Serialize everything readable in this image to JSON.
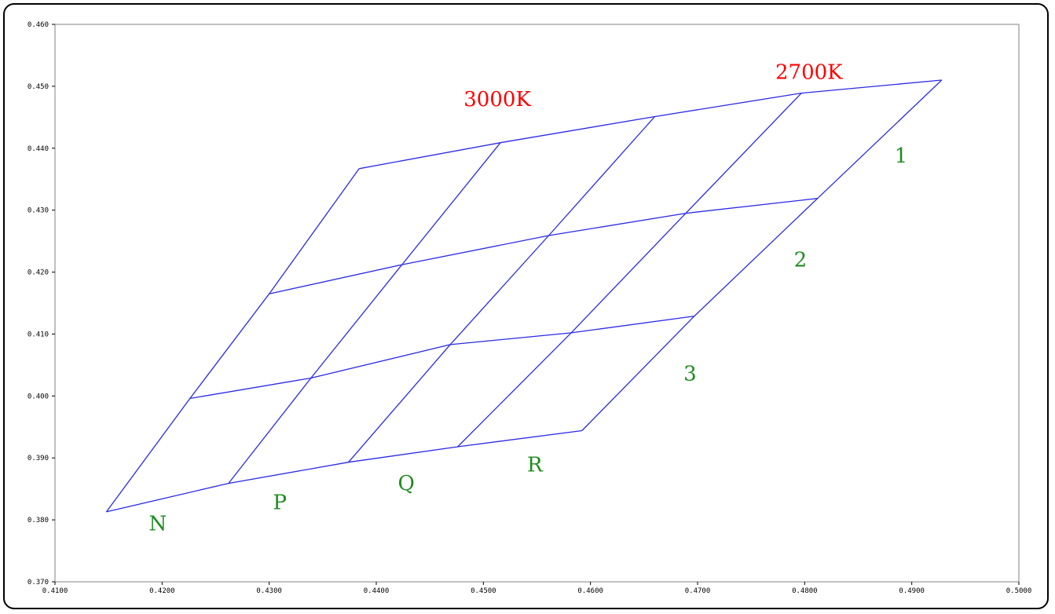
{
  "colors": {
    "grid_line": "#2a2ae6",
    "temp_label": "#ff0000",
    "bin_label": "#1e8c1e",
    "axis": "#808080"
  },
  "chart_data": {
    "type": "line",
    "title": "",
    "xlabel": "",
    "ylabel": "",
    "xlim": [
      0.41,
      0.5
    ],
    "ylim": [
      0.37,
      0.46
    ],
    "x_ticks": [
      "0.4100",
      "0.4200",
      "0.4300",
      "0.4400",
      "0.4500",
      "0.4600",
      "0.4700",
      "0.4800",
      "0.4900",
      "0.5000"
    ],
    "y_ticks": [
      "0.370",
      "0.380",
      "0.390",
      "0.400",
      "0.410",
      "0.420",
      "0.430",
      "0.440",
      "0.450",
      "0.460"
    ],
    "grid": false,
    "legend": "none",
    "series": [
      {
        "points": [
          [
            0.4148,
            0.3813
          ],
          [
            0.4262,
            0.3859
          ],
          [
            0.4374,
            0.3893
          ],
          [
            0.4476,
            0.3918
          ],
          [
            0.4592,
            0.3944
          ]
        ]
      },
      {
        "points": [
          [
            0.4226,
            0.3996
          ],
          [
            0.4339,
            0.4029
          ],
          [
            0.4469,
            0.4083
          ],
          [
            0.4582,
            0.4102
          ],
          [
            0.4697,
            0.4129
          ]
        ]
      },
      {
        "points": [
          [
            0.43,
            0.4165
          ],
          [
            0.4424,
            0.4212
          ],
          [
            0.4561,
            0.4259
          ],
          [
            0.4689,
            0.4295
          ],
          [
            0.4812,
            0.4319
          ]
        ]
      },
      {
        "points": [
          [
            0.4384,
            0.4367
          ],
          [
            0.4516,
            0.4409
          ],
          [
            0.466,
            0.4451
          ],
          [
            0.4797,
            0.4489
          ],
          [
            0.4928,
            0.451
          ]
        ]
      },
      {
        "points": [
          [
            0.4148,
            0.3813
          ],
          [
            0.4226,
            0.3996
          ],
          [
            0.43,
            0.4165
          ],
          [
            0.4384,
            0.4367
          ]
        ]
      },
      {
        "points": [
          [
            0.4262,
            0.3859
          ],
          [
            0.4339,
            0.4029
          ],
          [
            0.4424,
            0.4212
          ],
          [
            0.4516,
            0.4409
          ]
        ]
      },
      {
        "points": [
          [
            0.4374,
            0.3893
          ],
          [
            0.4469,
            0.4083
          ],
          [
            0.4561,
            0.4259
          ],
          [
            0.466,
            0.4451
          ]
        ]
      },
      {
        "points": [
          [
            0.4476,
            0.3918
          ],
          [
            0.4582,
            0.4102
          ],
          [
            0.4689,
            0.4295
          ],
          [
            0.4797,
            0.4489
          ]
        ]
      },
      {
        "points": [
          [
            0.4592,
            0.3944
          ],
          [
            0.4697,
            0.4129
          ],
          [
            0.4812,
            0.4319
          ],
          [
            0.4928,
            0.451
          ]
        ]
      }
    ],
    "annotations": [
      {
        "text": "3000K",
        "x": 0.4513,
        "y": 0.4468,
        "color": "red"
      },
      {
        "text": "2700K",
        "x": 0.4804,
        "y": 0.4512,
        "color": "red"
      },
      {
        "text": "1",
        "x": 0.489,
        "y": 0.4377,
        "color": "green"
      },
      {
        "text": "2",
        "x": 0.4796,
        "y": 0.4209,
        "color": "green"
      },
      {
        "text": "3",
        "x": 0.4693,
        "y": 0.4025,
        "color": "green"
      },
      {
        "text": "N",
        "x": 0.4196,
        "y": 0.3783,
        "color": "green"
      },
      {
        "text": "P",
        "x": 0.431,
        "y": 0.3817,
        "color": "green"
      },
      {
        "text": "Q",
        "x": 0.4428,
        "y": 0.3848,
        "color": "green"
      },
      {
        "text": "R",
        "x": 0.4548,
        "y": 0.3878,
        "color": "green"
      }
    ]
  }
}
